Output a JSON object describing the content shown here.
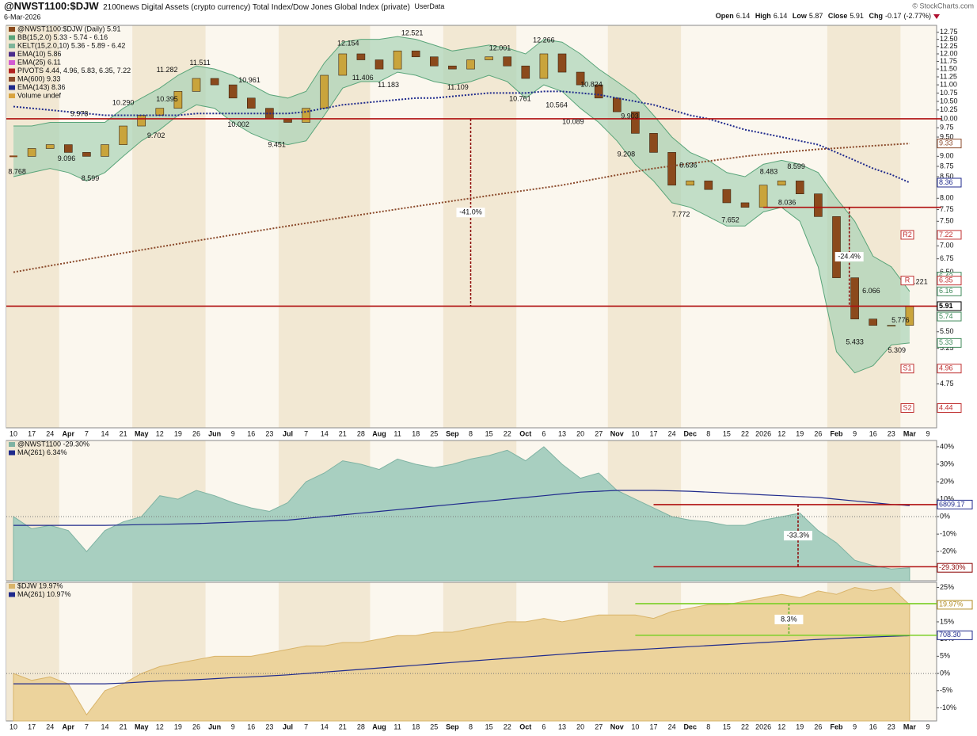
{
  "header": {
    "symbol": "@NWST1100:$DJW",
    "description": "2100news Digital Assets (crypto currency) Total Index/Dow Jones Global Index (private)",
    "source": "UserData",
    "date": "6-Mar-2026",
    "watermark": "© StockCharts.com",
    "quote": [
      {
        "label": "Open",
        "value": 6.14
      },
      {
        "label": "High",
        "value": 6.14
      },
      {
        "label": "Low",
        "value": 5.87
      },
      {
        "label": "Close",
        "value": 5.91
      },
      {
        "label": "Chg",
        "value": -0.17,
        "pct": "(-2.77%)"
      }
    ]
  },
  "chart_data": [
    {
      "type": "candlestick",
      "log": true,
      "categories": [
        "10",
        "17",
        "24",
        "Apr",
        "7",
        "14",
        "21",
        "May",
        "12",
        "19",
        "26",
        "Jun",
        "9",
        "16",
        "23",
        "Jul",
        "7",
        "14",
        "21",
        "28",
        "Aug",
        "11",
        "18",
        "25",
        "Sep",
        "8",
        "15",
        "22",
        "Oct",
        "6",
        "13",
        "20",
        "27",
        "Nov",
        "10",
        "17",
        "24",
        "Dec",
        "8",
        "15",
        "22",
        "2026",
        "12",
        "19",
        "26",
        "Feb",
        "9",
        "16",
        "23",
        "Mar",
        "9"
      ],
      "ylim": [
        4.2,
        13.0
      ],
      "yticks": [
        4.75,
        5.25,
        {
          "value": 5.5,
          "label": "5.50"
        },
        {
          "value": 6.5,
          "label": "6.50"
        },
        6.75,
        {
          "value": 7,
          "label": "7.00"
        },
        {
          "value": 7.5,
          "label": "7.50"
        },
        7.75,
        {
          "value": 8,
          "label": "8.00"
        },
        {
          "value": 8.5,
          "label": "8.50"
        },
        8.75,
        {
          "value": 9,
          "label": "9.00"
        },
        {
          "value": 9.5,
          "label": "9.50"
        },
        9.75,
        {
          "value": 10,
          "label": "10.00"
        },
        10.25,
        {
          "value": 10.5,
          "label": "10.50"
        },
        10.75,
        {
          "value": 11,
          "label": "11.00"
        },
        11.25,
        {
          "value": 11.5,
          "label": "11.50"
        },
        11.75,
        {
          "value": 12,
          "label": "12.00"
        },
        12.25,
        {
          "value": 12.5,
          "label": "12.50"
        },
        12.75
      ],
      "series": [
        {
          "name": "@NWST1100:$DJW (Daily) 5.91",
          "color": "#8b4a1c",
          "up_color": "#c9a43c",
          "values": [
            9.0,
            9.2,
            9.3,
            9.1,
            9.0,
            9.3,
            9.8,
            10.1,
            10.3,
            10.8,
            11.2,
            11.0,
            10.6,
            10.3,
            10.0,
            9.9,
            10.3,
            11.3,
            12.0,
            11.8,
            11.5,
            12.1,
            11.9,
            11.6,
            11.5,
            11.8,
            11.9,
            11.6,
            11.2,
            12.0,
            11.4,
            11.0,
            10.6,
            10.2,
            9.6,
            9.1,
            8.3,
            8.4,
            8.2,
            7.9,
            7.8,
            8.3,
            8.4,
            8.1,
            7.6,
            6.4,
            5.7,
            5.6,
            5.6,
            5.91,
            null
          ]
        },
        {
          "name": "BB(15,2.0) 5.33 - 5.74 - 6.16",
          "color": "#5aa57a",
          "fill": "#a9d3b6",
          "upper": [
            9.8,
            9.8,
            9.9,
            9.9,
            9.9,
            9.9,
            10.3,
            10.6,
            10.9,
            11.3,
            11.6,
            11.5,
            11.3,
            11.0,
            10.7,
            10.6,
            10.8,
            11.7,
            12.4,
            12.5,
            12.5,
            12.6,
            12.5,
            12.3,
            12.1,
            12.2,
            12.3,
            12.2,
            12.0,
            12.5,
            12.4,
            12.0,
            11.5,
            11.1,
            10.7,
            10.1,
            9.5,
            9.1,
            8.9,
            8.6,
            8.5,
            8.8,
            8.9,
            8.8,
            8.6,
            8.0,
            7.5,
            6.8,
            6.6,
            6.16,
            null
          ],
          "lower": [
            8.5,
            8.6,
            8.7,
            8.6,
            8.4,
            8.6,
            9.0,
            9.4,
            9.7,
            10.1,
            10.4,
            10.3,
            9.9,
            9.6,
            9.4,
            9.3,
            9.4,
            10.1,
            10.9,
            11.1,
            11.1,
            11.4,
            11.3,
            11.1,
            11.0,
            11.1,
            11.3,
            11.1,
            10.6,
            11.0,
            10.8,
            10.3,
            9.9,
            9.4,
            8.8,
            8.4,
            7.9,
            7.8,
            7.6,
            7.4,
            7.4,
            7.7,
            7.8,
            7.5,
            6.6,
            5.2,
            4.9,
            5.0,
            5.3,
            5.33,
            null
          ]
        },
        {
          "name": "KELT(15,2.0,10) 5.36 - 5.89 - 6.42",
          "color": "#7fb59a"
        },
        {
          "name": "EMA(10) 5.86",
          "color": "#4b2d8c"
        },
        {
          "name": "EMA(25) 6.11",
          "color": "#d25bd2"
        },
        {
          "name": "PIVOTS 4.44, 4.96, 5.83, 6.35, 7.22",
          "color": "#b22222"
        },
        {
          "name": "MA(600) 9.33",
          "color": "#8b4a2b",
          "dash": true,
          "values": [
            6.5,
            6.56,
            6.62,
            6.68,
            6.74,
            6.8,
            6.86,
            6.92,
            6.98,
            7.04,
            7.1,
            7.16,
            7.22,
            7.28,
            7.34,
            7.4,
            7.46,
            7.52,
            7.58,
            7.64,
            7.7,
            7.76,
            7.82,
            7.88,
            7.94,
            8.0,
            8.06,
            8.12,
            8.18,
            8.24,
            8.3,
            8.38,
            8.46,
            8.54,
            8.62,
            8.7,
            8.76,
            8.82,
            8.88,
            8.94,
            9.0,
            9.05,
            9.1,
            9.14,
            9.18,
            9.21,
            9.24,
            9.27,
            9.3,
            9.33,
            null
          ]
        },
        {
          "name": "EMA(143) 8.36",
          "color": "#1f2a8c",
          "dash": true,
          "values": [
            10.35,
            10.3,
            10.25,
            10.2,
            10.15,
            10.1,
            10.1,
            10.1,
            10.1,
            10.1,
            10.15,
            10.15,
            10.15,
            10.15,
            10.15,
            10.15,
            10.2,
            10.3,
            10.4,
            10.45,
            10.5,
            10.55,
            10.6,
            10.6,
            10.65,
            10.7,
            10.75,
            10.75,
            10.75,
            10.8,
            10.8,
            10.75,
            10.7,
            10.6,
            10.5,
            10.4,
            10.25,
            10.1,
            10.0,
            9.85,
            9.7,
            9.6,
            9.5,
            9.4,
            9.3,
            9.1,
            8.9,
            8.7,
            8.55,
            8.36,
            null
          ]
        },
        {
          "name": "Volume undef",
          "color": "#d9a441"
        }
      ],
      "hlines": [
        {
          "value": 10,
          "color": "#b01010"
        },
        {
          "value": 7.8,
          "start": 41,
          "color": "#b01010"
        },
        {
          "value": 5.91,
          "color": "#b01010"
        }
      ],
      "annotations": [
        {
          "text": "-41.0%",
          "x": 25,
          "from": 10,
          "to": 5.91,
          "color": "#8b0000"
        },
        {
          "text": "-24.4%",
          "x": 45.7,
          "from": 7.8,
          "to": 5.91,
          "color": "#8b0000"
        }
      ],
      "price_labels": [
        {
          "x": 0.2,
          "value": 8.768
        },
        {
          "x": 2.9,
          "value": 9.096
        },
        {
          "x": 3.6,
          "value": 9.978
        },
        {
          "x": 4.2,
          "value": 8.599
        },
        {
          "x": 6,
          "value": 10.29,
          "label": "10.290"
        },
        {
          "x": 7.8,
          "value": 9.702
        },
        {
          "x": 8.4,
          "value": 10.395
        },
        {
          "x": 8.4,
          "value": 11.282
        },
        {
          "x": 10.2,
          "value": 11.511
        },
        {
          "x": 12.9,
          "value": 10.961
        },
        {
          "x": 12.3,
          "value": 10.002
        },
        {
          "x": 14.4,
          "value": 9.451
        },
        {
          "x": 18.3,
          "value": 12.154
        },
        {
          "x": 19.1,
          "value": 11.406
        },
        {
          "x": 21.8,
          "value": 12.521
        },
        {
          "x": 20.5,
          "value": 11.183
        },
        {
          "x": 24.3,
          "value": 11.109
        },
        {
          "x": 26.6,
          "value": 12.001
        },
        {
          "x": 27.7,
          "value": 10.761
        },
        {
          "x": 29,
          "value": 12.266
        },
        {
          "x": 29.7,
          "value": 10.564
        },
        {
          "x": 30.6,
          "value": 10.089
        },
        {
          "x": 31.6,
          "value": 10.824
        },
        {
          "x": 33.7,
          "value": 9.903
        },
        {
          "x": 33.5,
          "value": 9.208
        },
        {
          "x": 36.9,
          "value": 8.636
        },
        {
          "x": 36.5,
          "value": 7.772
        },
        {
          "x": 39.2,
          "value": 7.652
        },
        {
          "x": 41.3,
          "value": 8.483
        },
        {
          "x": 42.8,
          "value": 8.599
        },
        {
          "x": 42.3,
          "value": 8.036
        },
        {
          "x": 46,
          "value": 5.433
        },
        {
          "x": 46.9,
          "value": 6.066
        },
        {
          "x": 48.5,
          "value": 5.776
        },
        {
          "x": 48.3,
          "value": 5.309
        },
        {
          "x": 49.5,
          "value": 6.221
        }
      ],
      "tags": [
        {
          "value": 9.33,
          "color": "#8b4a2b"
        },
        {
          "value": 8.36,
          "color": "#1f2a8c"
        },
        {
          "value": 7.22,
          "color": "#c03030"
        },
        {
          "value": 6.42,
          "color": "#3f8a5a"
        },
        {
          "value": 6.35,
          "color": "#c03030"
        },
        {
          "value": 6.16,
          "color": "#3f8a5a"
        },
        {
          "value": 5.91,
          "color": "#000000"
        },
        {
          "value": 5.74,
          "color": "#3f8a5a"
        },
        {
          "value": 5.33,
          "color": "#3f8a5a"
        },
        {
          "value": 4.96,
          "color": "#c03030"
        },
        {
          "value": 4.44,
          "color": "#c03030"
        }
      ],
      "pivots": [
        {
          "label": "R2",
          "value": 7.22
        },
        {
          "label": "R",
          "value": 6.35
        },
        {
          "label": "S1",
          "value": 4.96
        },
        {
          "label": "S2",
          "value": 4.44
        }
      ]
    },
    {
      "type": "area",
      "ylim": [
        -36.7,
        43.6
      ],
      "yticks": [
        {
          "value": -20,
          "label": "-20%"
        },
        {
          "value": -10,
          "label": "-10%"
        },
        {
          "value": 0,
          "label": "0%"
        },
        {
          "value": 10,
          "label": "10%"
        },
        {
          "value": 20,
          "label": "20%"
        },
        {
          "value": 30,
          "label": "30%"
        },
        {
          "value": 40,
          "label": "40%"
        }
      ],
      "series": [
        {
          "name": "@NWST1100 -29.30%",
          "color": "#7fb3a3",
          "fill": "#a8cfc0",
          "values": [
            0,
            -7,
            -5,
            -8,
            -20,
            -8,
            -3,
            0,
            12,
            10,
            15,
            12,
            8,
            5,
            3,
            8,
            20,
            25,
            32,
            30,
            27,
            33,
            30,
            28,
            30,
            33,
            35,
            38,
            32,
            40,
            30,
            22,
            25,
            15,
            10,
            5,
            0,
            -2,
            -3,
            -5,
            -5,
            -2,
            0,
            2,
            -8,
            -15,
            -25,
            -28,
            -30,
            -29.3,
            null
          ]
        },
        {
          "name": "MA(261) 6.34%",
          "color": "#1f2a8c",
          "values": [
            -5,
            -5,
            -5,
            -5,
            -5,
            -5,
            -4.8,
            -4.6,
            -4.4,
            -4.2,
            -4,
            -3.6,
            -3.2,
            -2.8,
            -2.4,
            -2,
            -1,
            0,
            1,
            2,
            3,
            4,
            5,
            6,
            7,
            8,
            9,
            10,
            11,
            12,
            13,
            14,
            14.5,
            15,
            15,
            15,
            14.8,
            14.5,
            14,
            13.5,
            13,
            12.5,
            12,
            11.5,
            11,
            10,
            9,
            8,
            7,
            6.34,
            null
          ]
        }
      ],
      "hlines": [
        {
          "value": 6.9,
          "start": 35,
          "color": "#b01010"
        },
        {
          "value": -28.7,
          "start": 35,
          "color": "#b01010"
        }
      ],
      "annotations": [
        {
          "text": "-33.3%",
          "x": 42.9,
          "from": 6.9,
          "to": -28.7,
          "color": "#8b0000"
        }
      ],
      "tags": [
        {
          "label": "6809.17",
          "hline": 0,
          "color": "#1f2a8c"
        },
        {
          "value": -29.3,
          "label": "-29.30%",
          "color": "#8b0000"
        }
      ]
    },
    {
      "type": "area",
      "categories": [
        "10",
        "17",
        "24",
        "Apr",
        "7",
        "14",
        "21",
        "May",
        "12",
        "19",
        "26",
        "Jun",
        "9",
        "16",
        "23",
        "Jul",
        "7",
        "14",
        "21",
        "28",
        "Aug",
        "11",
        "18",
        "25",
        "Sep",
        "8",
        "15",
        "22",
        "Oct",
        "6",
        "13",
        "20",
        "27",
        "Nov",
        "10",
        "17",
        "24",
        "Dec",
        "8",
        "15",
        "22",
        "2026",
        "12",
        "19",
        "26",
        "Feb",
        "9",
        "16",
        "23",
        "Mar",
        "9"
      ],
      "ylim": [
        -13.8,
        26.5
      ],
      "yticks": [
        {
          "value": -10,
          "label": "-10%"
        },
        {
          "value": -5,
          "label": "-5%"
        },
        {
          "value": 0,
          "label": "0%"
        },
        {
          "value": 5,
          "label": "5%"
        },
        {
          "value": 10,
          "label": "10%"
        },
        {
          "value": 15,
          "label": "15%"
        },
        {
          "value": 25,
          "label": "25%"
        }
      ],
      "series": [
        {
          "name": "$DJW 19.97%",
          "color": "#d9b46a",
          "fill": "#ecd39c",
          "values": [
            0,
            -2,
            -1,
            -3,
            -12,
            -5,
            -3,
            0,
            2,
            3,
            4,
            5,
            5,
            5,
            6,
            7,
            8,
            8,
            9,
            9,
            10,
            11,
            11,
            12,
            12,
            13,
            14,
            15,
            15,
            16,
            15,
            16,
            17,
            17,
            17,
            16,
            18,
            19,
            20,
            20,
            21,
            22,
            23,
            22,
            24,
            23,
            25,
            24,
            25,
            19.97,
            null
          ]
        },
        {
          "name": "MA(261) 10.97%",
          "color": "#1f2a8c",
          "values": [
            -3,
            -3,
            -3,
            -3,
            -3,
            -3,
            -2.8,
            -2.5,
            -2.2,
            -2,
            -1.8,
            -1.5,
            -1.2,
            -1,
            -0.7,
            -0.4,
            0,
            0.4,
            0.8,
            1.2,
            1.6,
            2,
            2.4,
            2.8,
            3.2,
            3.6,
            4,
            4.4,
            4.8,
            5.2,
            5.6,
            6,
            6.3,
            6.6,
            6.9,
            7.2,
            7.5,
            7.8,
            8.1,
            8.4,
            8.7,
            9,
            9.3,
            9.6,
            9.9,
            10.2,
            10.4,
            10.6,
            10.8,
            10.97,
            null
          ]
        }
      ],
      "hlines": [
        {
          "value": 20.3,
          "start": 34,
          "color": "#7ccf2a"
        },
        {
          "value": 11.1,
          "start": 34,
          "color": "#7ccf2a"
        }
      ],
      "annotations": [
        {
          "text": "8.3%",
          "x": 42.4,
          "from": 20.3,
          "to": 11.1,
          "color": "#5ab020"
        }
      ],
      "tags": [
        {
          "value": 19.97,
          "label": "19.97%",
          "color": "#b08a20"
        },
        {
          "label": "708.30",
          "hline": 1,
          "color": "#1f2a8c"
        }
      ]
    }
  ]
}
